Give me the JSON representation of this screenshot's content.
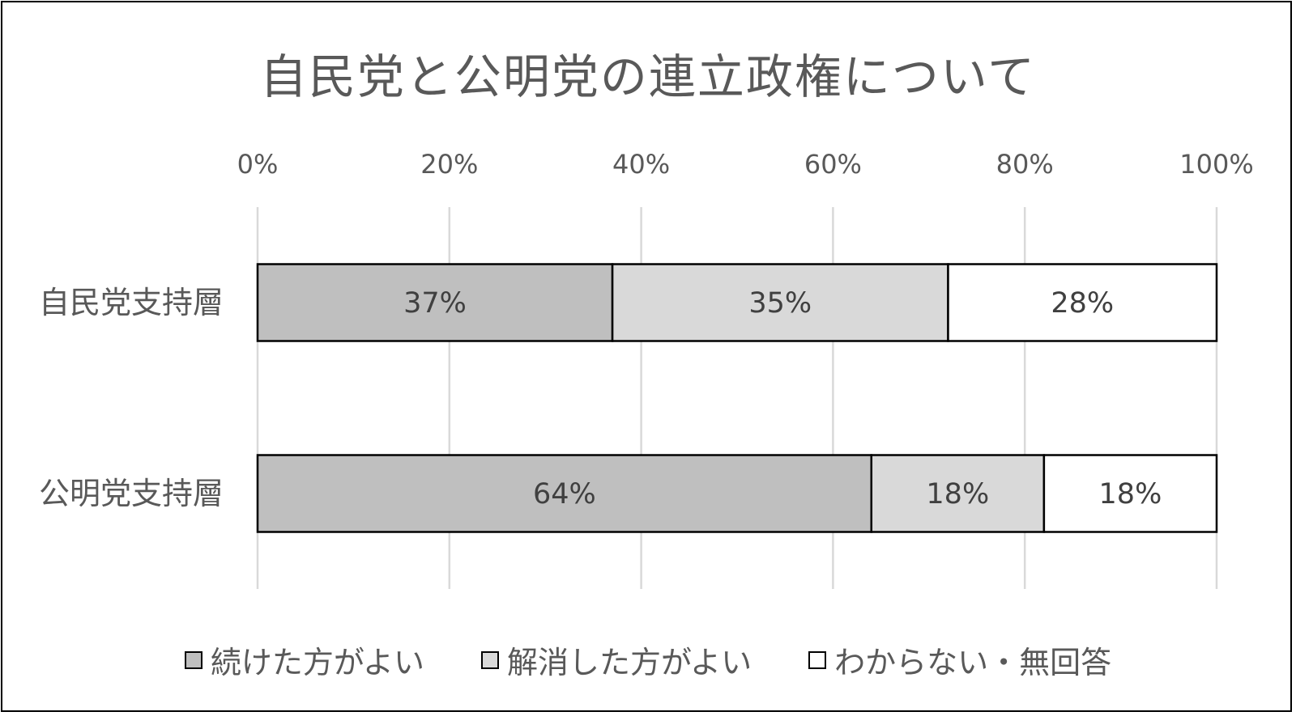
{
  "chart_data": {
    "type": "bar",
    "orientation": "horizontal",
    "stacked": true,
    "title": "自民党と公明党の連立政権について",
    "categories": [
      "自民党支持層",
      "公明党支持層"
    ],
    "series": [
      {
        "name": "続けた方がよい",
        "values": [
          37,
          64
        ],
        "labels": [
          "37%",
          "64%"
        ],
        "color": "#bfbfbf"
      },
      {
        "name": "解消した方がよい",
        "values": [
          35,
          18
        ],
        "labels": [
          "35%",
          "18%"
        ],
        "color": "#d9d9d9"
      },
      {
        "name": "わからない・無回答",
        "values": [
          28,
          18
        ],
        "labels": [
          "28%",
          "18%"
        ],
        "color": "#ffffff"
      }
    ],
    "xlim": [
      0,
      100
    ],
    "x_ticks": [
      "0%",
      "20%",
      "40%",
      "60%",
      "80%",
      "100%"
    ],
    "x_axis_position": "top",
    "grid": true,
    "legend_position": "bottom"
  }
}
